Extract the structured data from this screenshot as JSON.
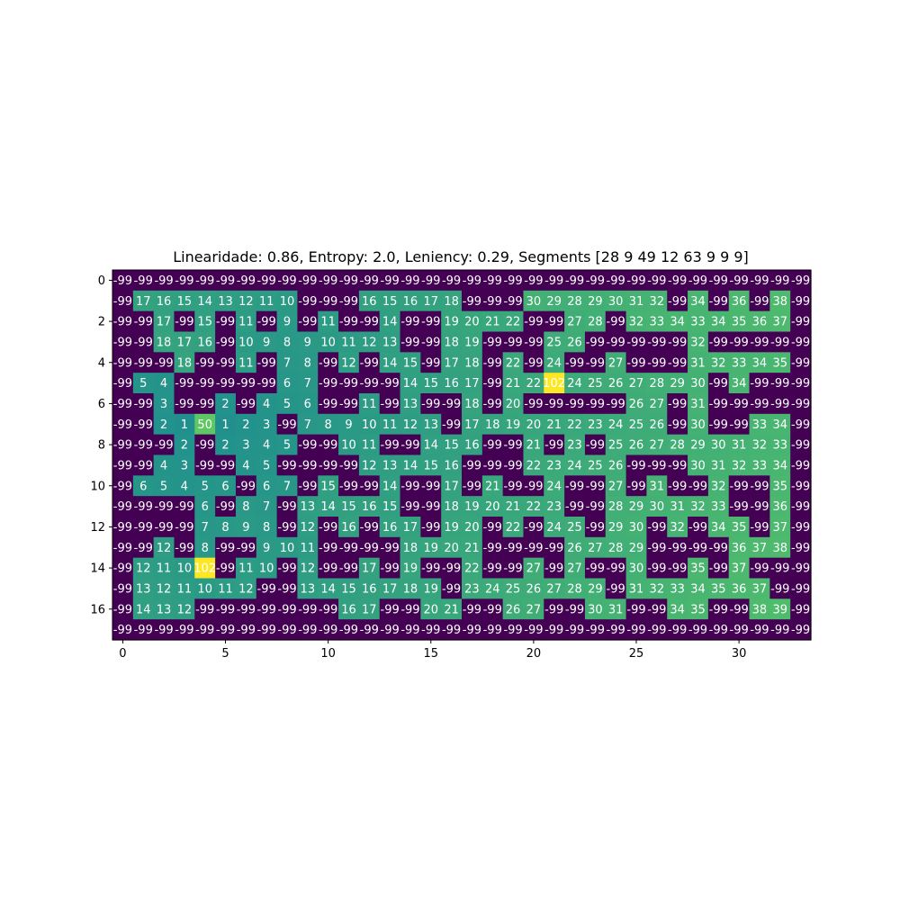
{
  "chart_data": {
    "type": "heatmap",
    "title": "Linearidade: 0.86, Entropy: 2.0, Leniency: 0.29, Segments [28  9 49 12 63  9  9  9]",
    "xlabel": "",
    "ylabel": "",
    "colormap": "viridis",
    "value_range": [
      -99,
      102
    ],
    "x_ticks": [
      0,
      5,
      10,
      15,
      20,
      25,
      30
    ],
    "y_ticks": [
      0,
      2,
      4,
      6,
      8,
      10,
      12,
      14,
      16
    ],
    "n_rows": 18,
    "n_cols": 34,
    "grid": false,
    "values": [
      [
        -99,
        -99,
        -99,
        -99,
        -99,
        -99,
        -99,
        -99,
        -99,
        -99,
        -99,
        -99,
        -99,
        -99,
        -99,
        -99,
        -99,
        -99,
        -99,
        -99,
        -99,
        -99,
        -99,
        -99,
        -99,
        -99,
        -99,
        -99,
        -99,
        -99,
        -99,
        -99,
        -99,
        -99
      ],
      [
        -99,
        17,
        16,
        15,
        14,
        13,
        12,
        11,
        10,
        -99,
        -99,
        -99,
        16,
        15,
        16,
        17,
        18,
        -99,
        -99,
        -99,
        30,
        29,
        28,
        29,
        30,
        31,
        32,
        -99,
        34,
        -99,
        36,
        -99,
        38,
        -99
      ],
      [
        -99,
        -99,
        17,
        -99,
        15,
        -99,
        11,
        -99,
        9,
        -99,
        11,
        -99,
        -99,
        14,
        -99,
        -99,
        19,
        20,
        21,
        22,
        -99,
        -99,
        27,
        28,
        -99,
        32,
        33,
        34,
        33,
        34,
        35,
        36,
        37,
        -99
      ],
      [
        -99,
        -99,
        18,
        17,
        16,
        -99,
        10,
        9,
        8,
        9,
        10,
        11,
        12,
        13,
        -99,
        -99,
        18,
        19,
        -99,
        -99,
        -99,
        25,
        26,
        -99,
        -99,
        -99,
        -99,
        -99,
        32,
        -99,
        -99,
        -99,
        -99,
        -99
      ],
      [
        -99,
        -99,
        -99,
        18,
        -99,
        -99,
        11,
        -99,
        7,
        8,
        -99,
        12,
        -99,
        14,
        15,
        -99,
        17,
        18,
        -99,
        22,
        -99,
        24,
        -99,
        -99,
        27,
        -99,
        -99,
        -99,
        31,
        32,
        33,
        34,
        35,
        -99
      ],
      [
        -99,
        5,
        4,
        -99,
        -99,
        -99,
        -99,
        -99,
        6,
        7,
        -99,
        -99,
        -99,
        -99,
        14,
        15,
        16,
        17,
        -99,
        21,
        22,
        102,
        24,
        25,
        26,
        27,
        28,
        29,
        30,
        -99,
        34,
        -99,
        -99,
        -99
      ],
      [
        -99,
        -99,
        3,
        -99,
        -99,
        2,
        -99,
        4,
        5,
        6,
        -99,
        -99,
        11,
        -99,
        13,
        -99,
        -99,
        18,
        -99,
        20,
        -99,
        -99,
        -99,
        -99,
        -99,
        26,
        27,
        -99,
        31,
        -99,
        -99,
        -99,
        -99,
        -99
      ],
      [
        -99,
        -99,
        2,
        1,
        50,
        1,
        2,
        3,
        -99,
        7,
        8,
        9,
        10,
        11,
        12,
        13,
        -99,
        17,
        18,
        19,
        20,
        21,
        22,
        23,
        24,
        25,
        26,
        -99,
        30,
        -99,
        -99,
        33,
        34,
        -99
      ],
      [
        -99,
        -99,
        -99,
        2,
        -99,
        2,
        3,
        4,
        5,
        -99,
        -99,
        10,
        11,
        -99,
        -99,
        14,
        15,
        16,
        -99,
        -99,
        21,
        -99,
        23,
        -99,
        25,
        26,
        27,
        28,
        29,
        30,
        31,
        32,
        33,
        -99
      ],
      [
        -99,
        -99,
        4,
        3,
        -99,
        -99,
        4,
        5,
        -99,
        -99,
        -99,
        -99,
        12,
        13,
        14,
        15,
        16,
        -99,
        -99,
        -99,
        22,
        23,
        24,
        25,
        26,
        -99,
        -99,
        -99,
        30,
        31,
        32,
        33,
        34,
        -99
      ],
      [
        -99,
        6,
        5,
        4,
        5,
        6,
        -99,
        6,
        7,
        -99,
        15,
        -99,
        -99,
        14,
        -99,
        -99,
        17,
        -99,
        21,
        -99,
        -99,
        24,
        -99,
        -99,
        27,
        -99,
        31,
        -99,
        -99,
        32,
        -99,
        -99,
        35,
        -99
      ],
      [
        -99,
        -99,
        -99,
        -99,
        6,
        -99,
        8,
        7,
        -99,
        13,
        14,
        15,
        16,
        15,
        -99,
        -99,
        18,
        19,
        20,
        21,
        22,
        23,
        -99,
        -99,
        28,
        29,
        30,
        31,
        32,
        33,
        -99,
        -99,
        36,
        -99
      ],
      [
        -99,
        -99,
        -99,
        -99,
        7,
        8,
        9,
        8,
        -99,
        12,
        -99,
        16,
        -99,
        16,
        17,
        -99,
        19,
        20,
        -99,
        22,
        -99,
        24,
        25,
        -99,
        29,
        30,
        -99,
        32,
        -99,
        34,
        35,
        -99,
        37,
        -99
      ],
      [
        -99,
        -99,
        12,
        -99,
        8,
        -99,
        -99,
        9,
        10,
        11,
        -99,
        -99,
        -99,
        -99,
        18,
        19,
        20,
        21,
        -99,
        -99,
        -99,
        -99,
        26,
        27,
        28,
        29,
        -99,
        -99,
        -99,
        -99,
        36,
        37,
        38,
        -99
      ],
      [
        -99,
        12,
        11,
        10,
        102,
        -99,
        11,
        10,
        -99,
        12,
        -99,
        -99,
        17,
        -99,
        19,
        -99,
        -99,
        22,
        -99,
        -99,
        27,
        -99,
        27,
        -99,
        -99,
        30,
        -99,
        -99,
        35,
        -99,
        37,
        -99,
        -99,
        -99
      ],
      [
        -99,
        13,
        12,
        11,
        10,
        11,
        12,
        -99,
        -99,
        13,
        14,
        15,
        16,
        17,
        18,
        19,
        -99,
        23,
        24,
        25,
        26,
        27,
        28,
        29,
        -99,
        31,
        32,
        33,
        34,
        35,
        36,
        37,
        -99,
        -99
      ],
      [
        -99,
        14,
        13,
        12,
        -99,
        -99,
        -99,
        -99,
        -99,
        -99,
        -99,
        16,
        17,
        -99,
        -99,
        20,
        21,
        -99,
        -99,
        26,
        27,
        -99,
        -99,
        30,
        31,
        -99,
        -99,
        34,
        35,
        -99,
        -99,
        38,
        39,
        -99
      ],
      [
        -99,
        -99,
        -99,
        -99,
        -99,
        -99,
        -99,
        -99,
        -99,
        -99,
        -99,
        -99,
        -99,
        -99,
        -99,
        -99,
        -99,
        -99,
        -99,
        -99,
        -99,
        -99,
        -99,
        -99,
        -99,
        -99,
        -99,
        -99,
        -99,
        -99,
        -99,
        -99,
        -99,
        -99
      ]
    ]
  }
}
